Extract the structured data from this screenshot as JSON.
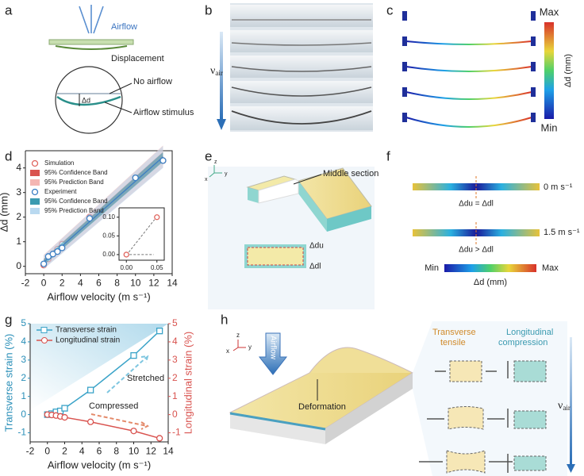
{
  "panels": [
    "a",
    "b",
    "c",
    "d",
    "e",
    "f",
    "g",
    "h"
  ],
  "panel_a": {
    "airflow": "Airflow",
    "displacement": "Displacement",
    "no_airflow": "No airflow",
    "delta": "Δd",
    "stimulus": "Airflow stimulus"
  },
  "panel_b": {
    "speed": "ν",
    "speed_sub": "air"
  },
  "panel_c": {
    "max": "Max",
    "min": "Min",
    "colorbar_label": "Δd (mm)"
  },
  "panel_e": {
    "section": "Middle section",
    "du": "Δdu",
    "dl": "Δdl",
    "axes": [
      "x",
      "y",
      "z"
    ]
  },
  "panel_f": {
    "speed_1": "0 m s⁻¹",
    "relation_1": "Δdu = Δdl",
    "speed_2": "1.5 m s⁻¹",
    "relation_2": "Δdu > Δdl",
    "min": "Min",
    "max": "Max",
    "colorbar_label": "Δd (mm)"
  },
  "panel_h": {
    "airflow": "Airflow",
    "deformation": "Deformation",
    "tensile": [
      "Transverse",
      "tensile"
    ],
    "compression": [
      "Longitudinal",
      "compression"
    ],
    "speed": "ν",
    "speed_sub": "air",
    "axes": [
      "x",
      "y",
      "z"
    ]
  },
  "chart_data": [
    {
      "type": "scatter",
      "xlabel": "Airflow velocity (m s⁻¹)",
      "ylabel": "Δd (mm)",
      "x": [
        0,
        0.5,
        1,
        1.5,
        2,
        5,
        10,
        13
      ],
      "series": [
        {
          "name": "Simulation",
          "color": "#e0665f",
          "values": [
            0.05,
            0.3,
            0.5,
            0.7,
            0.9,
            2.0,
            3.6,
            4.3
          ],
          "bands": [
            {
              "name": "95% Confidence Band",
              "color": "#d9534f"
            },
            {
              "name": "95% Prediction Band",
              "color": "#f4b6b3"
            }
          ]
        },
        {
          "name": "Experiment",
          "color": "#3b7fc4",
          "values": [
            0.1,
            0.4,
            0.5,
            0.6,
            0.75,
            1.95,
            3.6,
            4.3
          ],
          "bands": [
            {
              "name": "95% Confidence Band",
              "color": "#3a9ab0"
            },
            {
              "name": "95% Prediction Band",
              "color": "#b9d9f0"
            }
          ]
        }
      ],
      "xlim": [
        -2,
        14
      ],
      "xticks": [
        -2,
        0,
        2,
        4,
        6,
        8,
        10,
        12,
        14
      ],
      "ylim": [
        -0.3,
        4.7
      ],
      "yticks": [
        0,
        1,
        2,
        3,
        4
      ]
    },
    {
      "type": "scatter",
      "x": [
        0,
        0.05
      ],
      "series": [
        {
          "name": null,
          "color": "#e0665f",
          "values": [
            0,
            0.1
          ]
        }
      ],
      "xlim": [
        -0.012,
        0.062
      ],
      "xticks": [
        {
          "value": 0,
          "label": "0.00"
        },
        {
          "value": 0.05,
          "label": "0.05"
        }
      ],
      "ylim": [
        -0.015,
        0.125
      ],
      "yticks": [
        {
          "value": 0,
          "label": "0.00"
        },
        {
          "value": 0.05,
          "label": "0.05"
        },
        {
          "value": 0.1,
          "label": "0.10"
        }
      ]
    },
    {
      "type": "line",
      "xlabel": "Airflow velocity (m s⁻¹)",
      "ylabel": "Transverse strain (%)",
      "y2label": "Longitudinal strain (%)",
      "annotations": [
        "Stretched",
        "Compressed"
      ],
      "x": [
        0,
        0.5,
        1,
        1.5,
        2,
        5,
        10,
        13
      ],
      "series": [
        {
          "name": "Transverse strain",
          "color": "#3aa3c8",
          "marker": "square",
          "values": [
            0,
            0.05,
            0.15,
            0.2,
            0.35,
            1.35,
            3.25,
            4.6
          ]
        },
        {
          "name": "Longitudinal strain",
          "color": "#d9534f",
          "marker": "circle",
          "axis": "y2",
          "values": [
            0,
            -0.02,
            -0.05,
            -0.1,
            -0.15,
            -0.4,
            -0.9,
            -1.3
          ]
        }
      ],
      "xlim": [
        -2,
        14
      ],
      "xticks": [
        -2,
        0,
        2,
        4,
        6,
        8,
        10,
        12,
        14
      ],
      "ylim": [
        -1.5,
        5
      ],
      "yticks": [
        -1,
        0,
        1,
        2,
        3,
        4,
        5
      ],
      "y2lim": [
        -1.5,
        5
      ],
      "y2ticks": [
        -1,
        0,
        1,
        2,
        3,
        4,
        5
      ]
    }
  ]
}
